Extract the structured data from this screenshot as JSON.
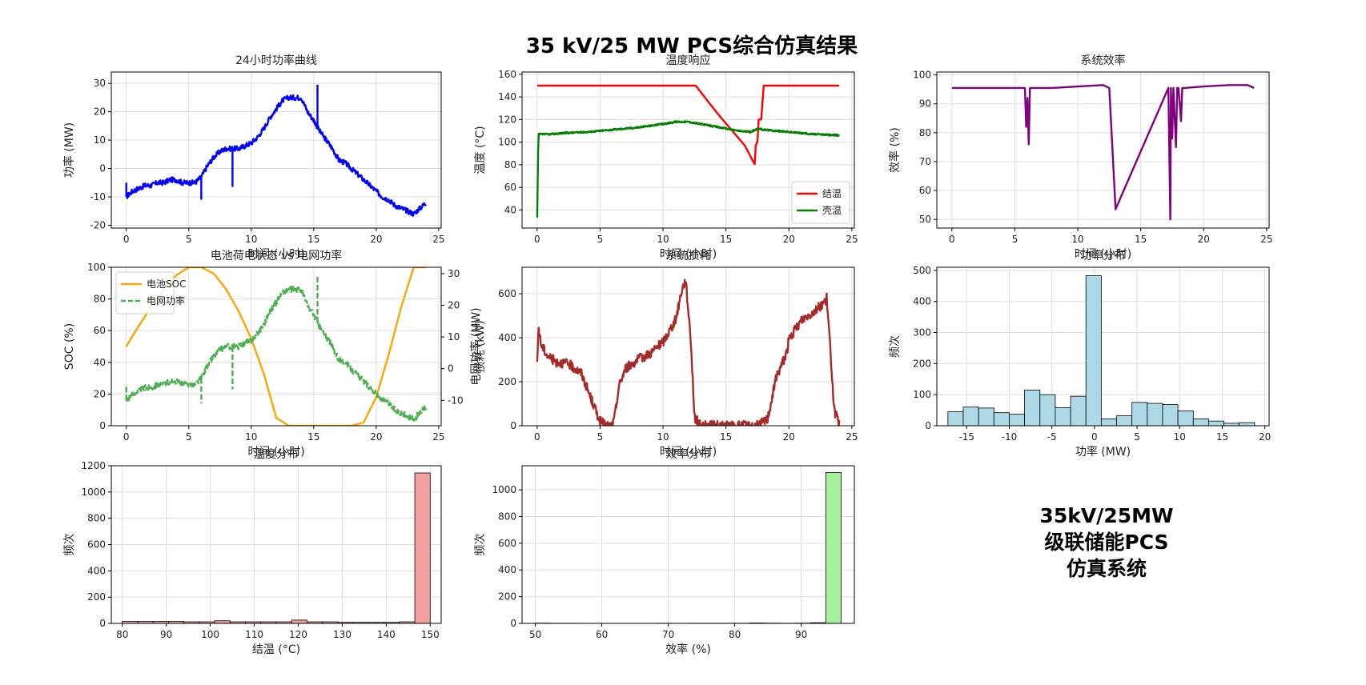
{
  "figure": {
    "suptitle": "35 kV/25 MW PCS综合仿真结果",
    "info_lines": [
      "35kV/25MW",
      "级联储能PCS",
      "仿真系统"
    ]
  },
  "chart_data": [
    {
      "id": "power",
      "type": "line",
      "title": "24小时功率曲线",
      "xlabel": "时间 (小时)",
      "ylabel": "功率 (MW)",
      "xlim": [
        -1.2,
        25.2
      ],
      "ylim": [
        -21,
        34
      ],
      "xticks": [
        0,
        5,
        10,
        15,
        20,
        25
      ],
      "yticks": [
        -20,
        -10,
        0,
        10,
        20,
        30
      ],
      "grid": true,
      "series": [
        {
          "color": "#0000ff",
          "x": [
            0,
            0.5,
            1,
            1.5,
            2,
            2.5,
            3,
            3.5,
            4,
            4.5,
            5,
            5.5,
            6,
            6.5,
            7,
            7.5,
            8,
            8.5,
            9,
            9.5,
            10,
            10.5,
            11,
            11.5,
            12,
            12.5,
            13,
            13.5,
            14,
            14.5,
            15,
            15.5,
            16,
            16.5,
            17,
            17.5,
            18,
            18.5,
            19,
            19.5,
            20,
            20.5,
            21,
            21.5,
            22,
            22.5,
            23,
            23.5,
            24
          ],
          "y": [
            -10,
            -8,
            -7,
            -6,
            -6,
            -5,
            -5,
            -4,
            -4,
            -5,
            -5,
            -5,
            -3,
            1,
            4,
            6,
            7,
            7,
            7,
            8,
            9,
            11,
            14,
            18,
            21,
            24,
            25,
            25,
            25,
            20,
            17,
            13,
            10,
            7,
            3,
            2,
            0,
            -2,
            -4,
            -6,
            -8,
            -10,
            -11,
            -13,
            -14,
            -15,
            -16,
            -14,
            -12
          ],
          "spikes": [
            [
              0,
              -5
            ],
            [
              6,
              -11
            ],
            [
              8.5,
              -6.5
            ],
            [
              15.3,
              29.5
            ]
          ]
        }
      ]
    },
    {
      "id": "temperature",
      "type": "line",
      "title": "温度响应",
      "xlabel": "时间 (小时)",
      "ylabel": "温度 (°C)",
      "xlim": [
        -1.2,
        25.2
      ],
      "ylim": [
        24,
        162
      ],
      "xticks": [
        0,
        5,
        10,
        15,
        20,
        25
      ],
      "yticks": [
        40,
        60,
        80,
        100,
        120,
        140,
        160
      ],
      "grid": true,
      "legend": "lower-right",
      "series": [
        {
          "name": "结温",
          "color": "#ff0000",
          "x": [
            0,
            2,
            4,
            6,
            8,
            10,
            12,
            12.6,
            13.5,
            14.5,
            15.5,
            16.5,
            17.3,
            17.35,
            17.5,
            17.6,
            17.8,
            18,
            20,
            22,
            24
          ],
          "y": [
            150,
            150,
            150,
            150,
            150,
            150,
            150,
            150,
            137,
            123,
            110,
            97,
            80,
            97,
            100,
            120,
            120,
            150,
            150,
            150,
            150
          ]
        },
        {
          "name": "壳温",
          "color": "#008000",
          "x": [
            0,
            0.1,
            1,
            2,
            4,
            6,
            8,
            10,
            11,
            12,
            13,
            14,
            15,
            16,
            17,
            17.5,
            18,
            20,
            22,
            24
          ],
          "y": [
            33,
            107,
            107,
            108,
            109,
            111,
            113,
            116,
            118,
            118,
            116,
            114,
            112,
            110,
            109,
            112,
            111,
            109,
            107,
            106
          ]
        }
      ]
    },
    {
      "id": "efficiency",
      "type": "line",
      "title": "系统效率",
      "xlabel": "时间 (小时)",
      "ylabel": "效率 (%)",
      "xlim": [
        -1.2,
        25.2
      ],
      "ylim": [
        47,
        101
      ],
      "xticks": [
        0,
        5,
        10,
        15,
        20,
        25
      ],
      "yticks": [
        50,
        60,
        70,
        80,
        90,
        100
      ],
      "grid": true,
      "series": [
        {
          "color": "#800080",
          "x": [
            0,
            2,
            4,
            5.8,
            5.9,
            6.0,
            6.1,
            6.2,
            8,
            10,
            12,
            12.5,
            13.0,
            17.2,
            17.35,
            17.4,
            17.5,
            17.6,
            17.8,
            17.9,
            18.0,
            18.2,
            18.3,
            18.5,
            20,
            22,
            23.5,
            24
          ],
          "y": [
            95.5,
            95.5,
            95.5,
            95.5,
            82,
            92,
            76,
            95.5,
            95.5,
            96,
            96.5,
            95.5,
            53.5,
            95.5,
            50,
            95.5,
            78,
            95.5,
            75,
            95.5,
            95.5,
            84,
            95.5,
            95.5,
            96,
            96.5,
            96.5,
            95.5
          ]
        }
      ]
    },
    {
      "id": "soc",
      "type": "line",
      "title": "电池荷电状态 vs 电网功率",
      "xlabel": "时间 (小时)",
      "ylabel": "SOC (%)",
      "ylabel_right": "电网功率 (MW)",
      "xlim": [
        -1.2,
        25.2
      ],
      "ylim": [
        0,
        100
      ],
      "ylim_right": [
        -18,
        32
      ],
      "xticks": [
        0,
        5,
        10,
        15,
        20,
        25
      ],
      "yticks": [
        0,
        20,
        40,
        60,
        80,
        100
      ],
      "yticks_right": [
        -10,
        0,
        10,
        20,
        30
      ],
      "grid": true,
      "legend": "upper-left",
      "series": [
        {
          "name": "电池SOC",
          "color": "#ffa500",
          "axis": "left",
          "x": [
            0,
            1,
            2,
            3,
            4,
            5,
            6,
            7,
            8,
            9,
            10,
            11,
            12,
            13,
            14,
            15,
            16,
            17,
            18,
            19,
            20,
            21,
            22,
            23,
            24
          ],
          "y": [
            50,
            63,
            75,
            86,
            95,
            100,
            100,
            96,
            86,
            72,
            55,
            33,
            5,
            0,
            0,
            0,
            0,
            0,
            0,
            2,
            18,
            45,
            75,
            100,
            100
          ]
        },
        {
          "name": "电网功率",
          "color": "#4caf50",
          "axis": "right",
          "dashed": true,
          "x": [
            0,
            0.5,
            1,
            1.5,
            2,
            2.5,
            3,
            3.5,
            4,
            4.5,
            5,
            5.5,
            6,
            6.5,
            7,
            7.5,
            8,
            8.5,
            9,
            9.5,
            10,
            10.5,
            11,
            11.5,
            12,
            12.5,
            13,
            13.5,
            14,
            14.5,
            15,
            15.5,
            16,
            16.5,
            17,
            17.5,
            18,
            18.5,
            19,
            19.5,
            20,
            20.5,
            21,
            21.5,
            22,
            22.5,
            23,
            23.5,
            24
          ],
          "y": [
            -10,
            -8,
            -7,
            -6,
            -6,
            -5,
            -5,
            -4,
            -4,
            -5,
            -5,
            -5,
            -3,
            1,
            4,
            6,
            7,
            7,
            7,
            8,
            9,
            11,
            14,
            18,
            21,
            24,
            25,
            25,
            25,
            20,
            17,
            13,
            10,
            7,
            3,
            2,
            0,
            -2,
            -4,
            -6,
            -8,
            -10,
            -11,
            -13,
            -14,
            -15,
            -16,
            -14,
            -12
          ],
          "spikes": [
            [
              0,
              -5
            ],
            [
              6,
              -11
            ],
            [
              8.5,
              -6.5
            ],
            [
              15.3,
              29.5
            ]
          ]
        }
      ]
    },
    {
      "id": "loss",
      "type": "line",
      "title": "系统损耗",
      "xlabel": "时间 (小时)",
      "ylabel": "损耗 (kW)",
      "xlim": [
        -1.2,
        25.2
      ],
      "ylim": [
        0,
        720
      ],
      "xticks": [
        0,
        5,
        10,
        15,
        20,
        25
      ],
      "yticks": [
        0,
        200,
        400,
        600
      ],
      "grid": true,
      "series": [
        {
          "color": "#a52a2a",
          "x": [
            0,
            0.1,
            0.3,
            0.8,
            1.5,
            2.5,
            3.5,
            4.3,
            5,
            5.5,
            5.9,
            6.1,
            6.5,
            7,
            8,
            9,
            10,
            11,
            11.5,
            11.8,
            12.2,
            12.5,
            13,
            15,
            17.5,
            18.3,
            19,
            19.8,
            20,
            21,
            22,
            22.8,
            23,
            23.3,
            23.6,
            24
          ],
          "y": [
            270,
            450,
            370,
            320,
            290,
            280,
            240,
            120,
            20,
            0,
            0,
            20,
            180,
            260,
            300,
            330,
            380,
            480,
            620,
            660,
            400,
            40,
            0,
            0,
            0,
            30,
            220,
            330,
            390,
            480,
            520,
            560,
            580,
            340,
            70,
            5
          ]
        }
      ]
    },
    {
      "id": "power_hist",
      "type": "bar",
      "title": "功率分布",
      "xlabel": "功率 (MW)",
      "ylabel": "频次",
      "xlim": [
        -18.5,
        20.5
      ],
      "ylim": [
        0,
        510
      ],
      "xticks": [
        -15,
        -10,
        -5,
        0,
        5,
        10,
        15,
        20
      ],
      "yticks": [
        0,
        100,
        200,
        300,
        400,
        500
      ],
      "grid": true,
      "bar_color": "#add8e6",
      "bin_edges": [
        -17.2,
        -15.4,
        -13.6,
        -11.8,
        -10.0,
        -8.2,
        -6.4,
        -4.6,
        -2.8,
        -1.0,
        0.8,
        2.6,
        4.4,
        6.2,
        8.0,
        9.8,
        11.6,
        13.4,
        15.2,
        17.0,
        18.8
      ],
      "values": [
        45,
        60,
        57,
        42,
        37,
        115,
        100,
        58,
        95,
        483,
        22,
        32,
        75,
        72,
        68,
        48,
        22,
        15,
        8,
        10
      ]
    },
    {
      "id": "temp_hist",
      "type": "bar",
      "title": "温度分布",
      "xlabel": "结温 (°C)",
      "ylabel": "频次",
      "xlim": [
        77.5,
        152.5
      ],
      "ylim": [
        0,
        1200
      ],
      "xticks": [
        80,
        90,
        100,
        110,
        120,
        130,
        140,
        150
      ],
      "yticks": [
        0,
        200,
        400,
        600,
        800,
        1000,
        1200
      ],
      "grid": true,
      "bar_color": "#f4a0a0",
      "bin_edges": [
        80,
        83.5,
        87,
        90.5,
        94,
        97.5,
        101,
        104.5,
        108,
        111.5,
        115,
        118.5,
        122,
        125.5,
        129,
        132.5,
        136,
        139.5,
        143,
        146.5,
        150
      ],
      "values": [
        15,
        15,
        15,
        15,
        12,
        12,
        20,
        12,
        12,
        12,
        12,
        25,
        12,
        12,
        8,
        8,
        8,
        8,
        12,
        1145
      ]
    },
    {
      "id": "eff_hist",
      "type": "bar",
      "title": "效率分布",
      "xlabel": "效率 (%)",
      "ylabel": "频次",
      "xlim": [
        48,
        98
      ],
      "ylim": [
        0,
        1180
      ],
      "xticks": [
        50,
        60,
        70,
        80,
        90
      ],
      "yticks": [
        0,
        200,
        400,
        600,
        800,
        1000
      ],
      "grid": true,
      "bar_color": "#a8f0a0",
      "bin_edges": [
        50,
        52.3,
        54.6,
        56.9,
        59.2,
        61.5,
        63.8,
        66.1,
        68.4,
        70.7,
        73.0,
        75.3,
        77.6,
        79.9,
        82.2,
        84.5,
        86.8,
        89.1,
        91.4,
        93.7,
        96.0
      ],
      "values": [
        2,
        1,
        1,
        0,
        0,
        0,
        0,
        0,
        1,
        0,
        1,
        1,
        1,
        1,
        3,
        2,
        1,
        2,
        5,
        1130
      ]
    }
  ]
}
